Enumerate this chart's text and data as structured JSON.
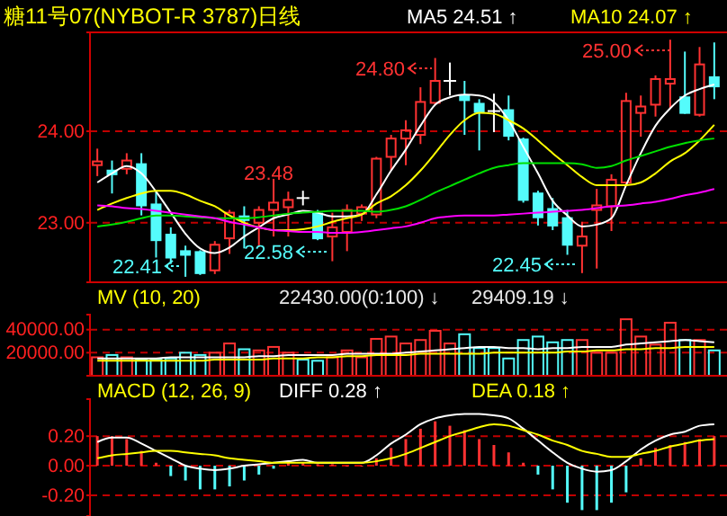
{
  "chart_data": [
    {
      "type": "candlestick",
      "title": "糖11号07(NYBOT-R 3787)日线",
      "categories": [
        null,
        null,
        null,
        null,
        null,
        null,
        null,
        null,
        null,
        null,
        null,
        null,
        null,
        null,
        null,
        null,
        null,
        null,
        null,
        null,
        null,
        null,
        null,
        null,
        null,
        null,
        null,
        null,
        null,
        null,
        null,
        null,
        null,
        null,
        null,
        null,
        null,
        null,
        null,
        null,
        null,
        null,
        null
      ],
      "ohlc": [
        [
          23.63,
          23.81,
          23.51,
          23.67
        ],
        [
          23.58,
          23.68,
          23.32,
          23.52
        ],
        [
          23.59,
          23.76,
          23.53,
          23.68
        ],
        [
          23.65,
          23.76,
          23.08,
          23.18
        ],
        [
          23.21,
          23.34,
          22.62,
          22.8
        ],
        [
          22.88,
          22.95,
          22.55,
          22.61
        ],
        [
          22.7,
          22.75,
          22.41,
          22.64
        ],
        [
          22.69,
          22.7,
          22.43,
          22.44
        ],
        [
          22.48,
          22.8,
          22.44,
          22.76
        ],
        [
          22.83,
          23.14,
          22.66,
          23.11
        ],
        [
          23.08,
          23.18,
          22.72,
          23.02
        ],
        [
          23.0,
          23.18,
          22.74,
          23.14
        ],
        [
          23.14,
          23.48,
          22.85,
          23.22
        ],
        [
          23.17,
          23.34,
          22.85,
          23.25
        ],
        [
          23.27,
          23.35,
          23.19,
          23.27
        ],
        [
          23.11,
          23.14,
          22.81,
          22.82
        ],
        [
          22.85,
          23.11,
          22.58,
          22.95
        ],
        [
          22.9,
          23.2,
          22.69,
          23.14
        ],
        [
          23.1,
          23.2,
          23.02,
          23.17
        ],
        [
          23.09,
          23.72,
          23.05,
          23.7
        ],
        [
          23.72,
          23.96,
          23.57,
          23.92
        ],
        [
          23.92,
          24.12,
          23.63,
          24.01
        ],
        [
          23.96,
          24.48,
          23.86,
          24.32
        ],
        [
          24.31,
          24.8,
          24.29,
          24.55
        ],
        [
          24.55,
          24.75,
          24.39,
          24.55
        ],
        [
          24.4,
          24.55,
          23.96,
          24.33
        ],
        [
          24.31,
          24.35,
          23.79,
          24.2
        ],
        [
          24.22,
          24.41,
          23.99,
          24.22
        ],
        [
          24.24,
          24.39,
          23.9,
          23.94
        ],
        [
          23.92,
          23.93,
          23.22,
          23.24
        ],
        [
          23.33,
          23.35,
          22.97,
          23.05
        ],
        [
          23.16,
          23.27,
          22.92,
          22.96
        ],
        [
          23.06,
          23.14,
          22.65,
          22.75
        ],
        [
          22.75,
          23.01,
          22.45,
          22.85
        ],
        [
          23.14,
          23.37,
          22.5,
          23.19
        ],
        [
          23.18,
          23.53,
          22.91,
          23.47
        ],
        [
          23.44,
          24.42,
          23.41,
          24.33
        ],
        [
          24.2,
          24.39,
          23.94,
          24.27
        ],
        [
          24.29,
          24.61,
          24.16,
          24.57
        ],
        [
          24.52,
          25.0,
          24.25,
          24.57
        ],
        [
          24.38,
          24.87,
          24.19,
          24.19
        ],
        [
          24.18,
          24.92,
          24.16,
          24.73
        ],
        [
          24.6,
          24.97,
          24.35,
          24.48
        ]
      ],
      "colors": [
        "#ff3232",
        "#54fcfc",
        "#ff3232",
        "#54fcfc",
        "#54fcfc",
        "#54fcfc",
        "#54fcfc",
        "#54fcfc",
        "#ff3232",
        "#ff3232",
        "#54fcfc",
        "#ff3232",
        "#ff3232",
        "#ff3232",
        "#ffffff",
        "#54fcfc",
        "#ff3232",
        "#ff3232",
        "#ff3232",
        "#ff3232",
        "#ff3232",
        "#ff3232",
        "#ff3232",
        "#ff3232",
        "#ffffff",
        "#54fcfc",
        "#54fcfc",
        "#ffffff",
        "#54fcfc",
        "#54fcfc",
        "#54fcfc",
        "#54fcfc",
        "#54fcfc",
        "#ff3232",
        "#ff3232",
        "#ff3232",
        "#ff3232",
        "#ff3232",
        "#ff3232",
        "#ff3232",
        "#54fcfc",
        "#ff3232",
        "#54fcfc"
      ],
      "series": [
        {
          "type": "line",
          "name": "MA5 24.51 ↑",
          "color": "#ffffff",
          "values": [
            23.44,
            23.54,
            23.62,
            23.54,
            23.34,
            23.11,
            22.88,
            22.72,
            22.67,
            22.73,
            22.85,
            22.95,
            23.05,
            23.09,
            23.13,
            23.11,
            23.07,
            23.07,
            23.09,
            23.31,
            23.57,
            23.8,
            24.06,
            24.29,
            24.37,
            24.4,
            24.39,
            24.32,
            24.12,
            23.83,
            23.54,
            23.24,
            23.08,
            22.96,
            22.98,
            23.05,
            23.41,
            23.76,
            24.06,
            24.25,
            24.39,
            24.46,
            24.51
          ]
        },
        {
          "type": "line",
          "name": "MA10 24.07 ↑",
          "color": "#ffff00",
          "values": [
            23.14,
            23.21,
            23.27,
            23.32,
            23.35,
            23.35,
            23.31,
            23.24,
            23.18,
            23.08,
            23.0,
            22.95,
            22.92,
            22.92,
            22.93,
            22.96,
            23.01,
            23.05,
            23.09,
            23.21,
            23.29,
            23.41,
            23.57,
            23.76,
            23.96,
            24.12,
            24.2,
            24.19,
            24.12,
            24.03,
            23.9,
            23.76,
            23.63,
            23.5,
            23.41,
            23.41,
            23.41,
            23.44,
            23.54,
            23.67,
            23.76,
            23.9,
            24.07
          ]
        },
        {
          "type": "line",
          "color": "#00e000",
          "values": [
            22.96,
            22.98,
            23.01,
            23.05,
            23.08,
            23.08,
            23.07,
            23.06,
            23.05,
            23.05,
            23.05,
            23.06,
            23.08,
            23.1,
            23.11,
            23.12,
            23.13,
            23.13,
            23.13,
            23.12,
            23.14,
            23.18,
            23.25,
            23.33,
            23.4,
            23.47,
            23.54,
            23.6,
            23.63,
            23.65,
            23.65,
            23.65,
            23.65,
            23.64,
            23.6,
            23.62,
            23.68,
            23.73,
            23.78,
            23.83,
            23.87,
            23.9,
            23.92
          ]
        },
        {
          "type": "line",
          "color": "#ff00ff",
          "values": [
            23.19,
            23.18,
            23.16,
            23.15,
            23.13,
            23.11,
            23.09,
            23.07,
            23.05,
            23.01,
            22.98,
            22.95,
            22.92,
            22.91,
            22.9,
            22.9,
            22.89,
            22.89,
            22.9,
            22.92,
            22.94,
            22.96,
            23.0,
            23.05,
            23.07,
            23.08,
            23.08,
            23.08,
            23.09,
            23.1,
            23.11,
            23.12,
            23.13,
            23.14,
            23.16,
            23.18,
            23.19,
            23.21,
            23.23,
            23.26,
            23.3,
            23.33,
            23.37
          ]
        }
      ],
      "ylim": [
        22.35,
        25.08
      ],
      "yticks": [
        {
          "value": 24,
          "label": "24.00"
        },
        {
          "value": 23,
          "label": "23.00"
        }
      ],
      "grid": "y",
      "legend": "top right",
      "tick_labels": "y",
      "annotations": [
        "24.80",
        "25.00",
        "23.48",
        "22.41",
        "22.58",
        "22.45"
      ]
    },
    {
      "type": "bar",
      "title": "MV (10, 20)",
      "categories": [
        null,
        null,
        null,
        null,
        null,
        null,
        null,
        null,
        null,
        null,
        null,
        null,
        null,
        null,
        null,
        null,
        null,
        null,
        null,
        null,
        null,
        null,
        null,
        null,
        null,
        null,
        null,
        null,
        null,
        null,
        null,
        null,
        null,
        null,
        null,
        null,
        null,
        null,
        null,
        null,
        null,
        null,
        null
      ],
      "values": [
        16000,
        18000,
        16000,
        14000,
        14000,
        15000,
        20000,
        18000,
        20000,
        28000,
        23000,
        22000,
        25000,
        20000,
        14000,
        13000,
        16000,
        22000,
        16000,
        32000,
        34000,
        28000,
        31000,
        39000,
        28000,
        36000,
        24000,
        24000,
        15000,
        31000,
        34000,
        29000,
        31000,
        31000,
        20000,
        20000,
        49000,
        34000,
        27000,
        46000,
        31000,
        31000,
        22000
      ],
      "colors": [
        "#ff3232",
        "#54fcfc",
        "#ff3232",
        "#54fcfc",
        "#54fcfc",
        "#54fcfc",
        "#54fcfc",
        "#54fcfc",
        "#ff3232",
        "#ff3232",
        "#54fcfc",
        "#ff3232",
        "#ff3232",
        "#ff3232",
        "#54fcfc",
        "#54fcfc",
        "#ff3232",
        "#ff3232",
        "#ff3232",
        "#ff3232",
        "#ff3232",
        "#ff3232",
        "#ff3232",
        "#ff3232",
        "#ff3232",
        "#54fcfc",
        "#54fcfc",
        "#54fcfc",
        "#54fcfc",
        "#54fcfc",
        "#54fcfc",
        "#54fcfc",
        "#54fcfc",
        "#ff3232",
        "#ff3232",
        "#ff3232",
        "#ff3232",
        "#ff3232",
        "#ff3232",
        "#ff3232",
        "#54fcfc",
        "#ff3232",
        "#54fcfc"
      ],
      "series": [
        {
          "type": "line",
          "color": "#ffffff",
          "values": [
            15000,
            15000,
            15000,
            15000,
            15000,
            16000,
            16000,
            16000,
            16000,
            16000,
            16000,
            17000,
            17000,
            18000,
            18000,
            18000,
            18000,
            19000,
            19000,
            19000,
            19000,
            20000,
            21000,
            22000,
            23000,
            24000,
            25000,
            25000,
            24000,
            24000,
            23000,
            24000,
            24000,
            25000,
            25000,
            25000,
            27000,
            28000,
            29000,
            30000,
            31000,
            30000,
            29000
          ]
        },
        {
          "type": "line",
          "color": "#ffff00",
          "values": [
            13000,
            13000,
            13000,
            13000,
            13000,
            13000,
            13000,
            13000,
            14000,
            14000,
            14000,
            14000,
            15000,
            15000,
            15000,
            16000,
            16000,
            17000,
            17000,
            18000,
            18000,
            18000,
            19000,
            19000,
            19000,
            19000,
            19000,
            20000,
            20000,
            20000,
            20000,
            20000,
            21000,
            21000,
            22000,
            22000,
            23000,
            23000,
            24000,
            24000,
            25000,
            25000,
            25000
          ]
        }
      ],
      "ylim": [
        0,
        53000
      ],
      "yticks": [
        {
          "value": 40000,
          "label": "40000.00"
        },
        {
          "value": 20000,
          "label": "20000.00"
        }
      ],
      "grid": "y",
      "tick_labels": "y",
      "annotations": [
        "22430.00(0:100) ↓",
        "29409.19 ↓"
      ]
    },
    {
      "type": "bar",
      "title": "MACD (12, 26, 9)",
      "categories": [
        null,
        null,
        null,
        null,
        null,
        null,
        null,
        null,
        null,
        null,
        null,
        null,
        null,
        null,
        null,
        null,
        null,
        null,
        null,
        null,
        null,
        null,
        null,
        null,
        null,
        null,
        null,
        null,
        null,
        null,
        null,
        null,
        null,
        null,
        null,
        null,
        null,
        null,
        null,
        null,
        null,
        null,
        null
      ],
      "values": [
        0.2,
        0.2,
        0.18,
        0.1,
        0.02,
        -0.07,
        -0.1,
        -0.16,
        -0.16,
        -0.14,
        -0.1,
        -0.06,
        -0.02,
        0.02,
        0.02,
        0.01,
        0.01,
        0.0,
        0.0,
        0.05,
        0.12,
        0.18,
        0.25,
        0.3,
        0.27,
        0.24,
        0.18,
        0.14,
        0.09,
        0.02,
        -0.06,
        -0.16,
        -0.25,
        -0.3,
        -0.3,
        -0.25,
        -0.18,
        0.05,
        0.12,
        0.14,
        0.16,
        0.18,
        0.2
      ],
      "colors": [
        "#ff3232",
        "#ff3232",
        "#ff3232",
        "#ff3232",
        "#ff3232",
        "#54fcfc",
        "#54fcfc",
        "#54fcfc",
        "#54fcfc",
        "#54fcfc",
        "#54fcfc",
        "#54fcfc",
        "#54fcfc",
        "#ff3232",
        "#ff3232",
        "#ff3232",
        "#ff3232",
        "#ff3232",
        "#ff3232",
        "#ff3232",
        "#ff3232",
        "#ff3232",
        "#ff3232",
        "#ff3232",
        "#ff3232",
        "#ff3232",
        "#ff3232",
        "#ff3232",
        "#ff3232",
        "#ff3232",
        "#54fcfc",
        "#54fcfc",
        "#54fcfc",
        "#54fcfc",
        "#54fcfc",
        "#54fcfc",
        "#54fcfc",
        "#ff3232",
        "#ff3232",
        "#ff3232",
        "#ff3232",
        "#ff3232",
        "#ff3232"
      ],
      "series": [
        {
          "type": "line",
          "name": "DIFF  0.28 ↑",
          "color": "#ffffff",
          "values": [
            0.16,
            0.19,
            0.19,
            0.15,
            0.1,
            0.05,
            0.0,
            -0.02,
            -0.03,
            -0.02,
            0.0,
            0.01,
            0.02,
            0.03,
            0.04,
            0.02,
            0.02,
            0.02,
            0.02,
            0.07,
            0.15,
            0.21,
            0.28,
            0.32,
            0.34,
            0.35,
            0.35,
            0.34,
            0.32,
            0.25,
            0.17,
            0.09,
            0.02,
            -0.02,
            -0.04,
            -0.03,
            0.03,
            0.11,
            0.17,
            0.21,
            0.23,
            0.27,
            0.28
          ]
        },
        {
          "type": "line",
          "name": "DEA  0.18 ↑",
          "color": "#ffff00",
          "values": [
            0.05,
            0.07,
            0.08,
            0.09,
            0.1,
            0.1,
            0.09,
            0.08,
            0.07,
            0.05,
            0.04,
            0.03,
            0.02,
            0.02,
            0.02,
            0.02,
            0.02,
            0.02,
            0.02,
            0.03,
            0.05,
            0.08,
            0.12,
            0.16,
            0.2,
            0.23,
            0.26,
            0.28,
            0.27,
            0.24,
            0.21,
            0.17,
            0.14,
            0.1,
            0.08,
            0.06,
            0.06,
            0.08,
            0.1,
            0.13,
            0.15,
            0.17,
            0.18
          ]
        }
      ],
      "ylim": [
        -0.34,
        0.45
      ],
      "yticks": [
        {
          "value": 0.2,
          "label": "0.20"
        },
        {
          "value": 0,
          "label": "0.00"
        },
        {
          "value": -0.2,
          "label": "-0.20"
        }
      ],
      "grid": "y",
      "legend": "top",
      "tick_labels": "y"
    }
  ]
}
